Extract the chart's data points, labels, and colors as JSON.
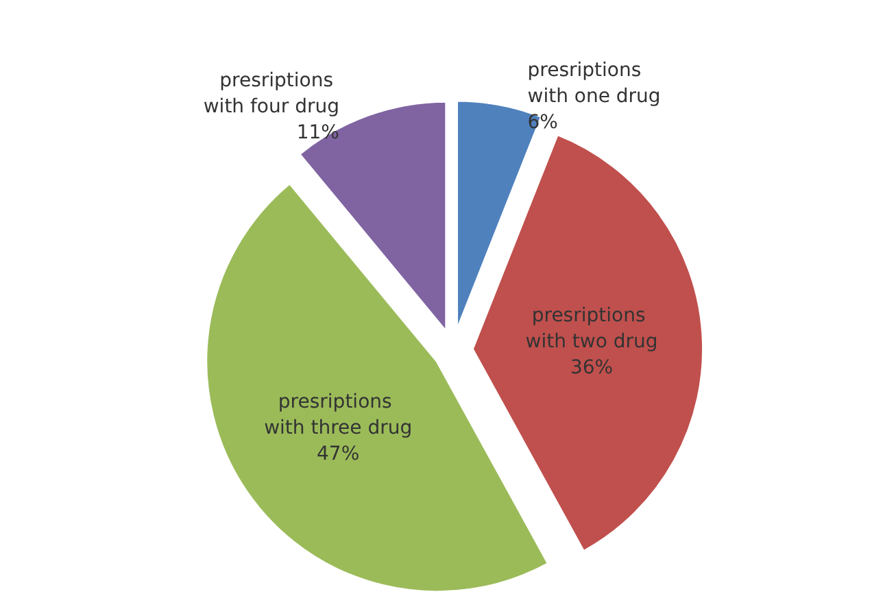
{
  "chart_data": {
    "type": "pie",
    "categories": [
      "presriptions with one drug",
      "presriptions with two drug",
      "presriptions with three drug",
      "presriptions with four drug"
    ],
    "values": [
      6,
      36,
      47,
      11
    ],
    "value_labels": [
      "6%",
      "36%",
      "47%",
      "11%"
    ],
    "colors": [
      "#4f81bd",
      "#c0504d",
      "#9bbb59",
      "#8064a2"
    ],
    "legend": false
  }
}
